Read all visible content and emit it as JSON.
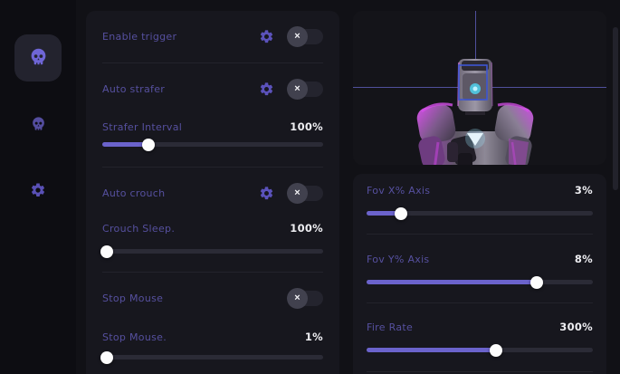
{
  "colors": {
    "accent": "#6b63cc",
    "label_text": "#56509f",
    "value_text": "#eeeef2",
    "page_bg": "#111116",
    "sidebar_bg": "#0d0d12",
    "panel_bg": "#17171e",
    "active_tile_bg": "#23232e",
    "toggle_track": "#24242e",
    "toggle_knob": "#41414e",
    "slider_track": "#2b2b36",
    "crosshair": "#50509c",
    "hitbox_outline": "#3d56d4",
    "model_rim_light": "#cf3fe0"
  },
  "sidebar": {
    "items": [
      {
        "icon": "skull-icon",
        "active": true
      },
      {
        "icon": "skull-icon",
        "active": false
      },
      {
        "icon": "gear-icon",
        "active": false
      }
    ]
  },
  "left_panel": {
    "enable_trigger": {
      "label": "Enable trigger",
      "state": "off",
      "has_gear": true
    },
    "auto_strafer": {
      "label": "Auto strafer",
      "state": "off",
      "has_gear": true
    },
    "strafer_interval": {
      "label": "Strafer Interval",
      "value": "100%",
      "percent": 21
    },
    "auto_crouch": {
      "label": "Auto crouch",
      "state": "off",
      "has_gear": true
    },
    "crouch_sleep": {
      "label": "Crouch Sleep.",
      "value": "100%",
      "percent": 2
    },
    "stop_mouse": {
      "label": "Stop Mouse",
      "state": "off",
      "has_gear": false
    },
    "stop_mouse_amount": {
      "label": "Stop Mouse.",
      "value": "1%",
      "percent": 2
    }
  },
  "right_panel": {
    "fov_x": {
      "label": "Fov X% Axis",
      "value": "3%",
      "percent": 15
    },
    "fov_y": {
      "label": "Fov Y% Axis",
      "value": "8%",
      "percent": 75
    },
    "fire_rate": {
      "label": "Fire Rate",
      "value": "300%",
      "percent": 57
    }
  },
  "toggle_off_glyph": "×"
}
